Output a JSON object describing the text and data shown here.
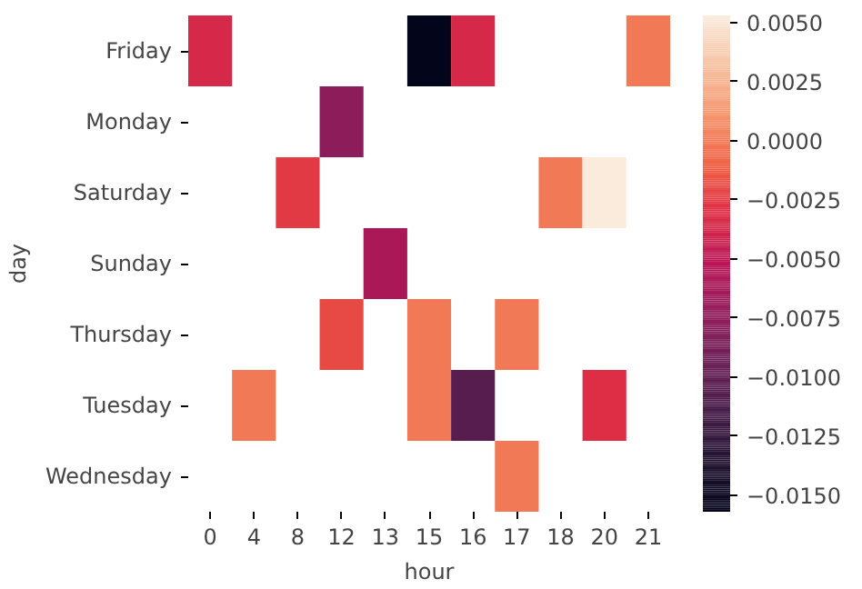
{
  "chart_data": {
    "type": "heatmap",
    "xlabel": "hour",
    "ylabel": "day",
    "categories": [
      "0",
      "4",
      "8",
      "12",
      "13",
      "15",
      "16",
      "17",
      "18",
      "20",
      "21"
    ],
    "y_categories": [
      "Friday",
      "Monday",
      "Saturday",
      "Sunday",
      "Thursday",
      "Tuesday",
      "Wednesday"
    ],
    "cells": [
      [
        -0.0035,
        null,
        null,
        null,
        null,
        -0.0157,
        -0.0035,
        null,
        null,
        null,
        0.0
      ],
      [
        null,
        null,
        null,
        -0.0075,
        null,
        null,
        null,
        null,
        null,
        null,
        null
      ],
      [
        null,
        null,
        -0.0025,
        null,
        null,
        null,
        null,
        null,
        0.0,
        0.0053,
        null
      ],
      [
        null,
        null,
        null,
        null,
        -0.006,
        null,
        null,
        null,
        null,
        null,
        null
      ],
      [
        null,
        null,
        null,
        -0.002,
        null,
        0.0,
        null,
        0.0,
        null,
        null,
        null
      ],
      [
        null,
        0.0,
        null,
        null,
        null,
        0.0,
        -0.0105,
        null,
        null,
        -0.003,
        null
      ],
      [
        null,
        null,
        null,
        null,
        null,
        null,
        null,
        0.0,
        null,
        null,
        null
      ]
    ],
    "clim": [
      -0.0157,
      0.0053
    ],
    "cticks": [
      {
        "value": 0.005,
        "label": "0.0050"
      },
      {
        "value": 0.0025,
        "label": "0.0025"
      },
      {
        "value": 0,
        "label": "0.0000"
      },
      {
        "value": -0.0025,
        "label": "−0.0025"
      },
      {
        "value": -0.005,
        "label": "−0.0050"
      },
      {
        "value": -0.0075,
        "label": "−0.0075"
      },
      {
        "value": -0.01,
        "label": "−0.0100"
      },
      {
        "value": -0.0125,
        "label": "−0.0125"
      },
      {
        "value": -0.015,
        "label": "−0.0150"
      }
    ]
  }
}
